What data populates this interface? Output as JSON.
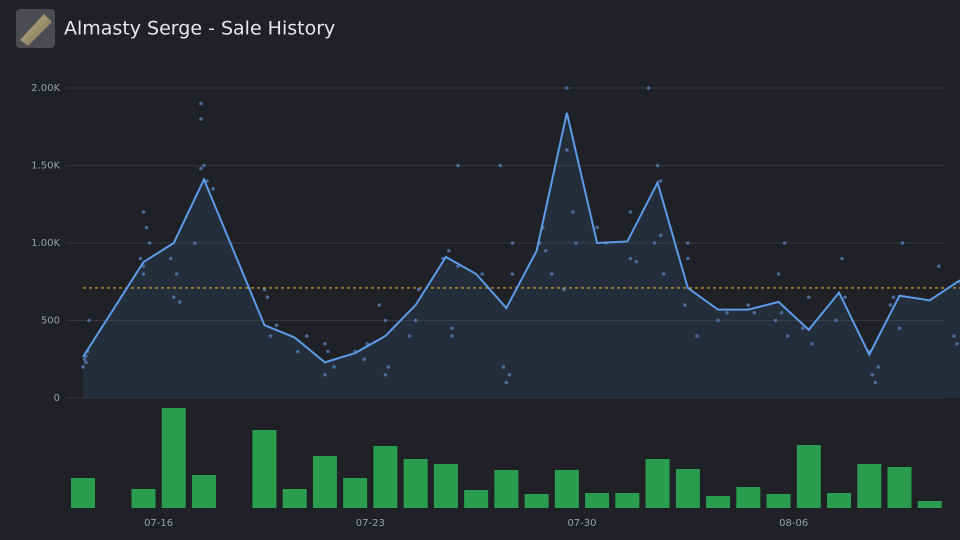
{
  "chart_data": [
    {
      "type": "line",
      "title": "Almasty Serge - Sale History",
      "x": [
        0,
        2,
        3,
        4,
        6,
        7,
        8,
        9,
        10,
        11,
        12,
        13,
        14,
        15,
        16,
        17,
        18,
        19,
        20,
        21,
        22,
        23,
        24,
        25,
        26,
        27,
        28,
        29
      ],
      "values": [
        265,
        877,
        1000,
        1410,
        470,
        390,
        230,
        290,
        400,
        600,
        910,
        800,
        580,
        950,
        1840,
        1000,
        1010,
        1390,
        710,
        570,
        570,
        620,
        440,
        680,
        280,
        660,
        630,
        760
      ],
      "color": "#5b9be8",
      "xlim": [
        0,
        29
      ],
      "ylim": [
        0,
        2000
      ],
      "yticks": [
        0,
        500,
        {
          "value": 1000,
          "label": "1.00K"
        },
        {
          "value": 1500,
          "label": "1.50K"
        },
        {
          "value": 2000,
          "label": "2.00K"
        }
      ],
      "grid": true,
      "points": {
        "color": "#4a6a99",
        "x": [
          0.1,
          0.1,
          0,
          0.2,
          0.05,
          0.15,
          2,
          1.9,
          2,
          2.1,
          2.2,
          2,
          3,
          3.1,
          2.9,
          3.2,
          3.9,
          3.9,
          4,
          3.9,
          4.1,
          4.3,
          3.7,
          6,
          6.1,
          6.2,
          6.4,
          7.1,
          7.4,
          8,
          8,
          8.3,
          8.1,
          9,
          9.3,
          9.4,
          10,
          10,
          9.8,
          10.1,
          11.1,
          11,
          10.8,
          12.1,
          11.9,
          12.2,
          12.2,
          12.4,
          12.4,
          13.2,
          13.8,
          13.9,
          14,
          14.1,
          14.2,
          14.2,
          15.1,
          15.2,
          15.3,
          15.5,
          16,
          16,
          16.2,
          15.9,
          16.3,
          17,
          17.3,
          18.1,
          18.1,
          18.3,
          18.7,
          19,
          19.1,
          18.9,
          19.2,
          19.1,
          20,
          20,
          19.9,
          20.3,
          21,
          21.3,
          22,
          22.2,
          23.2,
          23,
          23.1,
          22.9,
          23.3,
          24,
          24.1,
          23.8,
          25.1,
          24.9,
          25.2,
          26,
          26.1,
          26.2,
          26.3,
          27.1,
          26.7,
          26.8,
          27,
          28.3,
          28.8,
          28.9,
          29
        ],
        "values": [
          270,
          230,
          200,
          500,
          250,
          300,
          1200,
          900,
          800,
          1100,
          1000,
          850,
          650,
          800,
          900,
          620,
          1900,
          1800,
          1500,
          1480,
          1400,
          1350,
          1000,
          700,
          650,
          400,
          470,
          300,
          400,
          350,
          150,
          200,
          300,
          300,
          250,
          350,
          500,
          150,
          600,
          200,
          700,
          500,
          400,
          950,
          900,
          400,
          450,
          850,
          1500,
          800,
          1500,
          200,
          100,
          150,
          1000,
          800,
          1000,
          1100,
          950,
          800,
          2000,
          1600,
          1200,
          700,
          1000,
          1100,
          1000,
          900,
          1200,
          880,
          2000,
          1500,
          1400,
          1000,
          800,
          1050,
          1000,
          900,
          600,
          400,
          500,
          550,
          600,
          550,
          1000,
          800,
          550,
          500,
          400,
          650,
          350,
          450,
          900,
          500,
          650,
          300,
          150,
          100,
          200,
          1000,
          600,
          650,
          450,
          850,
          400,
          350,
          750
        ]
      },
      "reference_line": {
        "value": 710,
        "color": "#e0a526"
      }
    },
    {
      "type": "bar",
      "x": [
        0,
        2,
        3,
        4,
        6,
        7,
        8,
        9,
        10,
        11,
        12,
        13,
        14,
        15,
        16,
        17,
        18,
        19,
        20,
        21,
        22,
        23,
        24,
        25,
        26,
        27,
        28
      ],
      "values": [
        30,
        19,
        100,
        33,
        78,
        19,
        52,
        30,
        62,
        49,
        44,
        18,
        38,
        14,
        38,
        15,
        15,
        49,
        39,
        12,
        21,
        14,
        63,
        15,
        44,
        41,
        7
      ],
      "color": "#2a9d4f",
      "xlim": [
        0,
        29
      ],
      "ylim": [
        0,
        100
      ],
      "xticks": [
        {
          "value": 2.5,
          "label": "07-16"
        },
        {
          "value": 9.5,
          "label": "07-23"
        },
        {
          "value": 16.5,
          "label": "07-30"
        },
        {
          "value": 23.5,
          "label": "08-06"
        }
      ]
    }
  ]
}
